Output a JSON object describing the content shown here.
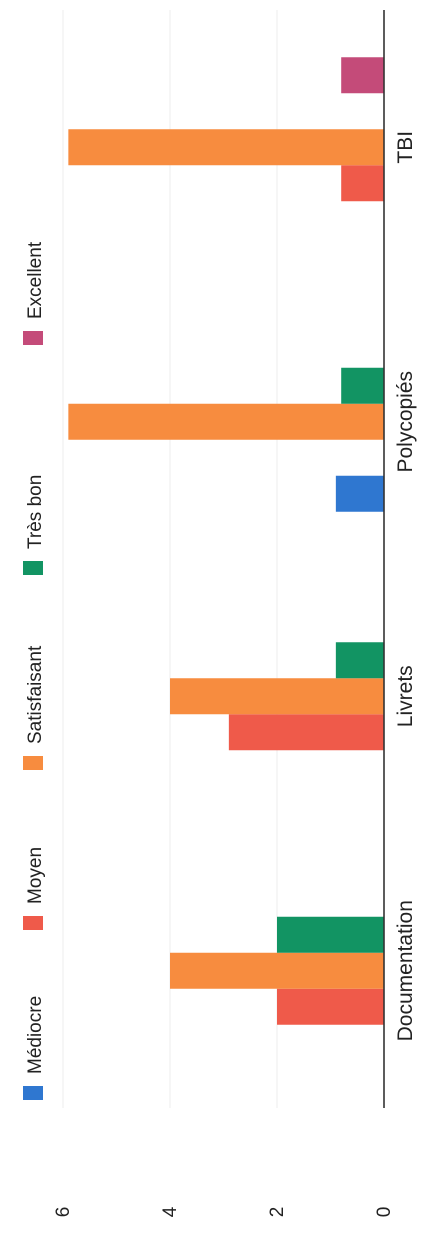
{
  "chart_data": {
    "type": "bar",
    "orientation": "rotated-90-ccw",
    "categories": [
      "Documentation",
      "Livrets",
      "Polycopiés",
      "TBI"
    ],
    "series": [
      {
        "name": "Médiocre",
        "color": "#2f77d0",
        "values": [
          0,
          0,
          0.9,
          0
        ]
      },
      {
        "name": "Moyen",
        "color": "#ef5a4a",
        "values": [
          2,
          2.9,
          0,
          0.8
        ]
      },
      {
        "name": "Satisfaisant",
        "color": "#f78c3f",
        "values": [
          4,
          4,
          5.9,
          5.9
        ]
      },
      {
        "name": "Très bon",
        "color": "#129463",
        "values": [
          2,
          0.9,
          0.8,
          0
        ]
      },
      {
        "name": "Excellent",
        "color": "#c44b79",
        "values": [
          0,
          0,
          0,
          0.8
        ]
      }
    ],
    "value_ticks": [
      "0",
      "2",
      "4",
      "6"
    ],
    "ylim": [
      0,
      6
    ],
    "grid": true,
    "legend_position": "top"
  }
}
